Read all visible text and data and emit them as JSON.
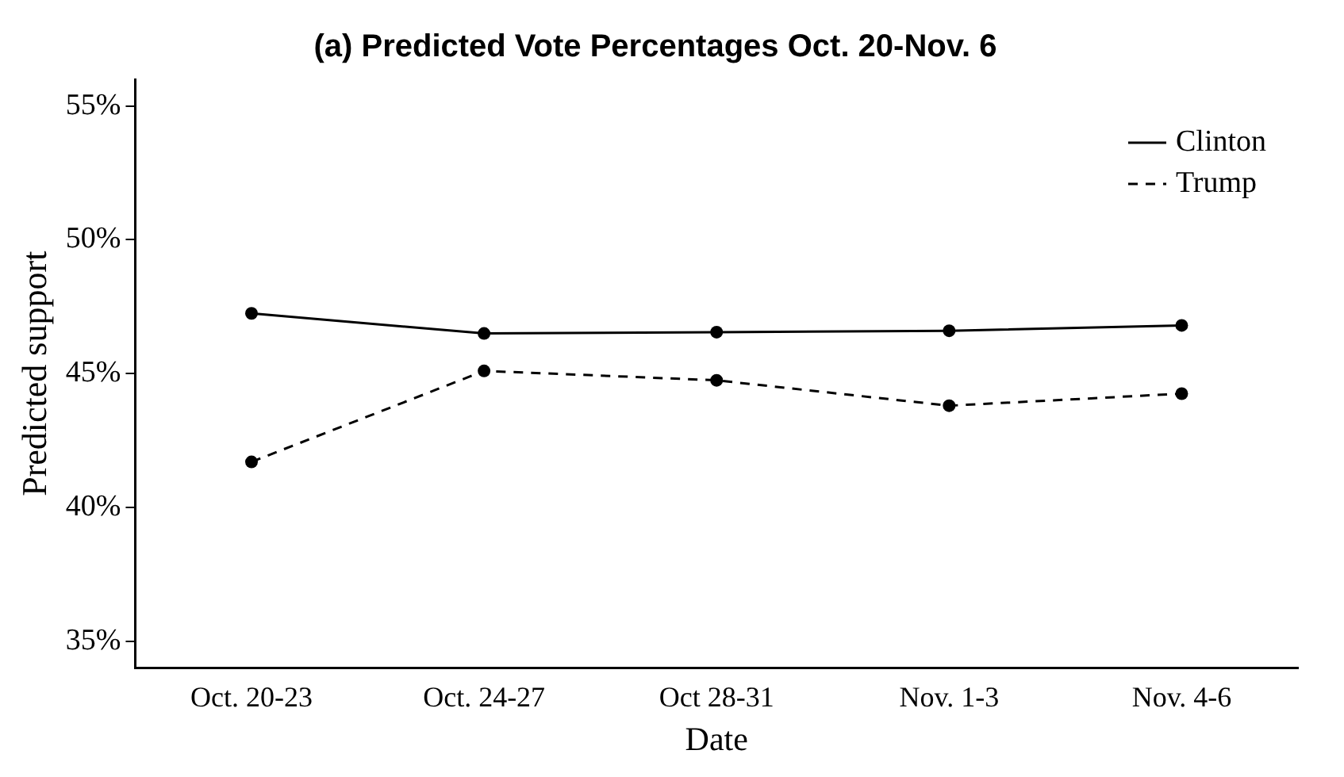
{
  "chart_data": {
    "type": "line",
    "title": "(a) Predicted Vote Percentages Oct. 20-Nov. 6",
    "xlabel": "Date",
    "ylabel": "Predicted support",
    "categories": [
      "Oct. 20-23",
      "Oct. 24-27",
      "Oct 28-31",
      "Nov. 1-3",
      "Nov. 4-6"
    ],
    "series": [
      {
        "name": "Clinton",
        "color": "#000000",
        "line_style": "solid",
        "values": [
          47.25,
          46.5,
          46.55,
          46.6,
          46.8
        ]
      },
      {
        "name": "Trump",
        "color": "#000000",
        "line_style": "dashed",
        "values": [
          41.7,
          45.1,
          44.75,
          43.8,
          44.25
        ]
      }
    ],
    "ylim": [
      34,
      56
    ],
    "yticks": [
      {
        "value": 35,
        "label": "35%"
      },
      {
        "value": 40,
        "label": "40%"
      },
      {
        "value": 45,
        "label": "45%"
      },
      {
        "value": 50,
        "label": "50%"
      },
      {
        "value": 55,
        "label": "55%"
      }
    ],
    "grid": false,
    "legend": "top right",
    "marker": "circle"
  }
}
